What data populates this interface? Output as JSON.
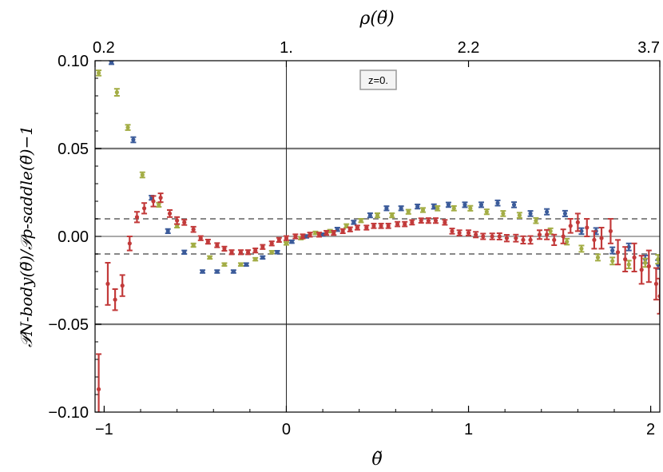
{
  "chart_data": {
    "type": "scatter",
    "title": "",
    "xlabel": "θ̃",
    "x2label": "ρ(θ̃)",
    "ylabel": "𝒫N-body(θ̃)/𝒫ρ-saddle(θ̃)−1",
    "xlim": [
      -1.05,
      2.05
    ],
    "ylim": [
      -0.1,
      0.1
    ],
    "xticks": [
      -1,
      0,
      1,
      2
    ],
    "xtick_labels": [
      "−1",
      "0",
      "1",
      "2"
    ],
    "yticks": [
      -0.1,
      -0.05,
      0,
      0.05,
      0.1
    ],
    "ytick_labels": [
      "−0.10",
      "−0.05",
      "0.00",
      "0.05",
      "0.10"
    ],
    "x2ticks": [
      -1.05,
      0,
      1.0,
      2.05
    ],
    "x2tick_labels": [
      "0.2",
      "1.",
      "2.2",
      "3.7"
    ],
    "annotation": "z=0.",
    "colors": {
      "blue": "#3b5b9a",
      "green": "#a3ad45",
      "red": "#c23a3a",
      "ref": "#777777",
      "dash": "#888888"
    },
    "reference_lines": {
      "solid": [
        0.05,
        0,
        -0.05
      ],
      "dashed": [
        0.01,
        -0.01
      ],
      "vertical": [
        0
      ]
    },
    "series": [
      {
        "color": "blue",
        "points": [
          [
            -0.96,
            0.099,
            0.001
          ],
          [
            -0.84,
            0.055,
            0.0015
          ],
          [
            -0.74,
            0.022,
            0.0012
          ],
          [
            -0.65,
            0.003,
            0.0012
          ],
          [
            -0.56,
            -0.009,
            0.001
          ],
          [
            -0.46,
            -0.02,
            0.0008
          ],
          [
            -0.38,
            -0.02,
            0.0008
          ],
          [
            -0.29,
            -0.02,
            0.0008
          ],
          [
            -0.22,
            -0.016,
            0.0008
          ],
          [
            -0.13,
            -0.012,
            0.0008
          ],
          [
            -0.05,
            -0.009,
            0.0008
          ],
          [
            0.03,
            -0.003,
            0.0008
          ],
          [
            0.11,
            0,
            0.0008
          ],
          [
            0.2,
            0.001,
            0.0008
          ],
          [
            0.28,
            0.004,
            0.001
          ],
          [
            0.37,
            0.008,
            0.001
          ],
          [
            0.46,
            0.012,
            0.0012
          ],
          [
            0.55,
            0.016,
            0.0012
          ],
          [
            0.63,
            0.016,
            0.0012
          ],
          [
            0.72,
            0.017,
            0.0012
          ],
          [
            0.81,
            0.017,
            0.0013
          ],
          [
            0.89,
            0.018,
            0.0013
          ],
          [
            0.98,
            0.018,
            0.0014
          ],
          [
            1.07,
            0.018,
            0.0014
          ],
          [
            1.16,
            0.019,
            0.0015
          ],
          [
            1.25,
            0.018,
            0.0015
          ],
          [
            1.34,
            0.013,
            0.0015
          ],
          [
            1.43,
            0.014,
            0.0016
          ],
          [
            1.53,
            0.013,
            0.0016
          ],
          [
            1.62,
            0.003,
            0.0017
          ],
          [
            1.7,
            0.003,
            0.0018
          ],
          [
            1.79,
            -0.008,
            0.0018
          ],
          [
            1.88,
            -0.006,
            0.002
          ],
          [
            1.97,
            -0.013,
            0.0022
          ],
          [
            2.04,
            -0.016,
            0.0025
          ]
        ]
      },
      {
        "color": "green",
        "points": [
          [
            -1.03,
            0.093,
            0.0015
          ],
          [
            -0.93,
            0.082,
            0.002
          ],
          [
            -0.87,
            0.062,
            0.0015
          ],
          [
            -0.79,
            0.035,
            0.0015
          ],
          [
            -0.7,
            0.018,
            0.0012
          ],
          [
            -0.6,
            0.006,
            0.001
          ],
          [
            -0.51,
            -0.005,
            0.001
          ],
          [
            -0.42,
            -0.012,
            0.0008
          ],
          [
            -0.34,
            -0.016,
            0.0008
          ],
          [
            -0.25,
            -0.016,
            0.0008
          ],
          [
            -0.17,
            -0.013,
            0.0008
          ],
          [
            -0.08,
            -0.009,
            0.0008
          ],
          [
            0.0,
            -0.004,
            0.0008
          ],
          [
            0.08,
            -0.001,
            0.0008
          ],
          [
            0.16,
            0.002,
            0.0008
          ],
          [
            0.24,
            0.003,
            0.0008
          ],
          [
            0.33,
            0.006,
            0.001
          ],
          [
            0.41,
            0.009,
            0.001
          ],
          [
            0.5,
            0.012,
            0.0012
          ],
          [
            0.58,
            0.012,
            0.0012
          ],
          [
            0.67,
            0.014,
            0.0012
          ],
          [
            0.75,
            0.015,
            0.0012
          ],
          [
            0.83,
            0.016,
            0.0013
          ],
          [
            0.92,
            0.016,
            0.0013
          ],
          [
            1.01,
            0.016,
            0.0014
          ],
          [
            1.1,
            0.014,
            0.0014
          ],
          [
            1.19,
            0.013,
            0.0015
          ],
          [
            1.28,
            0.012,
            0.0015
          ],
          [
            1.37,
            0.009,
            0.0015
          ],
          [
            1.45,
            0.003,
            0.0016
          ],
          [
            1.54,
            -0.003,
            0.0017
          ],
          [
            1.62,
            -0.007,
            0.0018
          ],
          [
            1.71,
            -0.012,
            0.0018
          ],
          [
            1.79,
            -0.014,
            0.002
          ],
          [
            1.88,
            -0.016,
            0.0022
          ],
          [
            1.97,
            -0.015,
            0.0024
          ],
          [
            2.04,
            -0.013,
            0.0025
          ]
        ]
      },
      {
        "color": "red",
        "points": [
          [
            -1.03,
            -0.087,
            0.02
          ],
          [
            -0.98,
            -0.027,
            0.012
          ],
          [
            -0.94,
            -0.036,
            0.006
          ],
          [
            -0.9,
            -0.028,
            0.006
          ],
          [
            -0.86,
            -0.004,
            0.004
          ],
          [
            -0.82,
            0.011,
            0.003
          ],
          [
            -0.78,
            0.016,
            0.003
          ],
          [
            -0.73,
            0.02,
            0.003
          ],
          [
            -0.69,
            0.022,
            0.0025
          ],
          [
            -0.64,
            0.013,
            0.002
          ],
          [
            -0.6,
            0.009,
            0.002
          ],
          [
            -0.56,
            0.008,
            0.0015
          ],
          [
            -0.51,
            0.004,
            0.0015
          ],
          [
            -0.47,
            -0.001,
            0.0012
          ],
          [
            -0.43,
            -0.003,
            0.0012
          ],
          [
            -0.38,
            -0.005,
            0.0012
          ],
          [
            -0.34,
            -0.007,
            0.0012
          ],
          [
            -0.3,
            -0.009,
            0.0012
          ],
          [
            -0.25,
            -0.009,
            0.0012
          ],
          [
            -0.21,
            -0.009,
            0.0012
          ],
          [
            -0.17,
            -0.008,
            0.0012
          ],
          [
            -0.13,
            -0.006,
            0.0012
          ],
          [
            -0.08,
            -0.004,
            0.0012
          ],
          [
            -0.04,
            -0.002,
            0.0012
          ],
          [
            0.0,
            -0.001,
            0.0012
          ],
          [
            0.05,
            0.0,
            0.0012
          ],
          [
            0.09,
            0.0,
            0.0012
          ],
          [
            0.13,
            0.001,
            0.0012
          ],
          [
            0.18,
            0.001,
            0.0012
          ],
          [
            0.22,
            0.002,
            0.0012
          ],
          [
            0.26,
            0.002,
            0.0012
          ],
          [
            0.31,
            0.003,
            0.0012
          ],
          [
            0.35,
            0.004,
            0.0012
          ],
          [
            0.39,
            0.005,
            0.0012
          ],
          [
            0.44,
            0.005,
            0.0012
          ],
          [
            0.48,
            0.006,
            0.0013
          ],
          [
            0.52,
            0.006,
            0.0013
          ],
          [
            0.56,
            0.006,
            0.0013
          ],
          [
            0.61,
            0.007,
            0.0013
          ],
          [
            0.65,
            0.007,
            0.0013
          ],
          [
            0.69,
            0.008,
            0.0013
          ],
          [
            0.74,
            0.009,
            0.0013
          ],
          [
            0.78,
            0.009,
            0.0014
          ],
          [
            0.82,
            0.009,
            0.0014
          ],
          [
            0.87,
            0.008,
            0.0014
          ],
          [
            0.91,
            0.003,
            0.0015
          ],
          [
            0.95,
            0.002,
            0.0015
          ],
          [
            1.0,
            0.002,
            0.0015
          ],
          [
            1.04,
            0.001,
            0.0016
          ],
          [
            1.08,
            0.0,
            0.0016
          ],
          [
            1.13,
            0.0,
            0.0017
          ],
          [
            1.17,
            0.0,
            0.0018
          ],
          [
            1.21,
            -0.001,
            0.0019
          ],
          [
            1.26,
            -0.001,
            0.002
          ],
          [
            1.3,
            -0.002,
            0.0021
          ],
          [
            1.34,
            -0.002,
            0.0022
          ],
          [
            1.39,
            0.001,
            0.0025
          ],
          [
            1.43,
            0.001,
            0.0027
          ],
          [
            1.47,
            -0.002,
            0.003
          ],
          [
            1.52,
            0.0,
            0.004
          ],
          [
            1.56,
            0.006,
            0.004
          ],
          [
            1.6,
            0.008,
            0.005
          ],
          [
            1.65,
            0.005,
            0.005
          ],
          [
            1.69,
            -0.002,
            0.005
          ],
          [
            1.73,
            -0.001,
            0.006
          ],
          [
            1.78,
            0.003,
            0.007
          ],
          [
            1.82,
            -0.009,
            0.007
          ],
          [
            1.86,
            -0.013,
            0.007
          ],
          [
            1.91,
            -0.012,
            0.008
          ],
          [
            1.95,
            -0.019,
            0.008
          ],
          [
            1.99,
            -0.017,
            0.009
          ],
          [
            2.03,
            -0.027,
            0.009
          ],
          [
            2.05,
            -0.034,
            0.01
          ]
        ]
      }
    ]
  }
}
